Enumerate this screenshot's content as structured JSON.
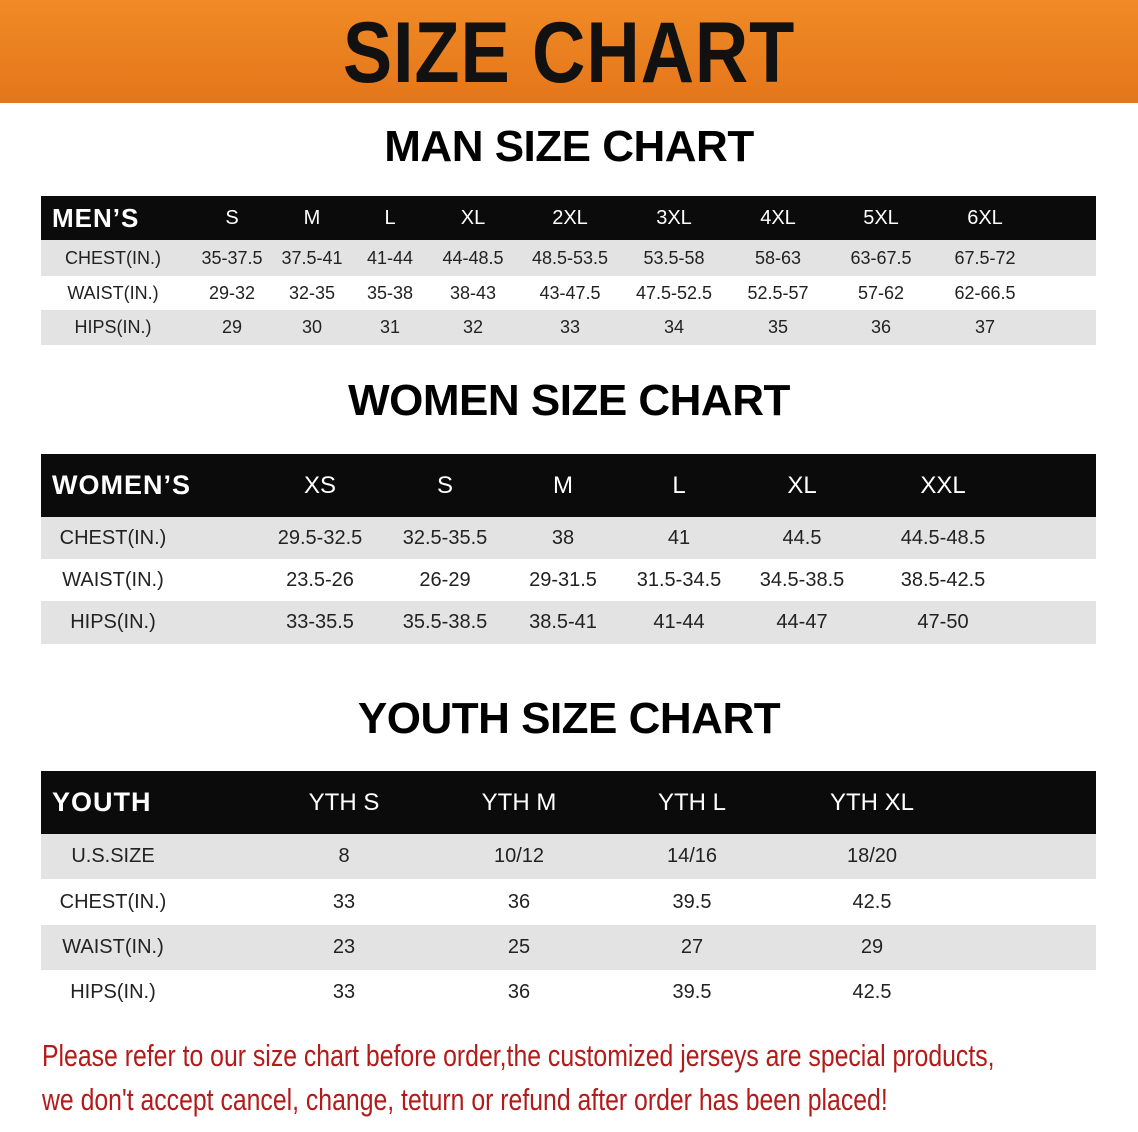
{
  "banner": {
    "title": "SIZE CHART",
    "color": "#e97d1f"
  },
  "tables": [
    {
      "title": "MAN SIZE CHART",
      "header_label": "MEN’S",
      "sizes": [
        "S",
        "M",
        "L",
        "XL",
        "2XL",
        "3XL",
        "4XL",
        "5XL",
        "6XL"
      ],
      "rows": [
        {
          "label": "CHEST(IN.)",
          "values": [
            "35-37.5",
            "37.5-41",
            "41-44",
            "44-48.5",
            "48.5-53.5",
            "53.5-58",
            "58-63",
            "63-67.5",
            "67.5-72"
          ]
        },
        {
          "label": "WAIST(IN.)",
          "values": [
            "29-32",
            "32-35",
            "35-38",
            "38-43",
            "43-47.5",
            "47.5-52.5",
            "52.5-57",
            "57-62",
            "62-66.5"
          ]
        },
        {
          "label": "HIPS(IN.)",
          "values": [
            "29",
            "30",
            "31",
            "32",
            "33",
            "34",
            "35",
            "36",
            "37"
          ]
        }
      ]
    },
    {
      "title": "WOMEN SIZE CHART",
      "header_label": "WOMEN’S",
      "sizes": [
        "XS",
        "S",
        "M",
        "L",
        "XL",
        "XXL"
      ],
      "rows": [
        {
          "label": "CHEST(IN.)",
          "values": [
            "29.5-32.5",
            "32.5-35.5",
            "38",
            "41",
            "44.5",
            "44.5-48.5"
          ]
        },
        {
          "label": "WAIST(IN.)",
          "values": [
            "23.5-26",
            "26-29",
            "29-31.5",
            "31.5-34.5",
            "34.5-38.5",
            "38.5-42.5"
          ]
        },
        {
          "label": "HIPS(IN.)",
          "values": [
            "33-35.5",
            "35.5-38.5",
            "38.5-41",
            "41-44",
            "44-47",
            "47-50"
          ]
        }
      ]
    },
    {
      "title": "YOUTH SIZE CHART",
      "header_label": "YOUTH",
      "sizes": [
        "YTH S",
        "YTH M",
        "YTH L",
        "YTH XL"
      ],
      "rows": [
        {
          "label": "U.S.SIZE",
          "values": [
            "8",
            "10/12",
            "14/16",
            "18/20"
          ]
        },
        {
          "label": "CHEST(IN.)",
          "values": [
            "33",
            "36",
            "39.5",
            "42.5"
          ]
        },
        {
          "label": "WAIST(IN.)",
          "values": [
            "23",
            "25",
            "27",
            "29"
          ]
        },
        {
          "label": "HIPS(IN.)",
          "values": [
            "33",
            "36",
            "39.5",
            "42.5"
          ]
        }
      ]
    }
  ],
  "footer": {
    "line1": "Please refer to our size chart before order,the customized jerseys are special products,",
    "line2": "we don't accept cancel, change, teturn or refund after order has been placed!",
    "color": "#b31b1b"
  }
}
